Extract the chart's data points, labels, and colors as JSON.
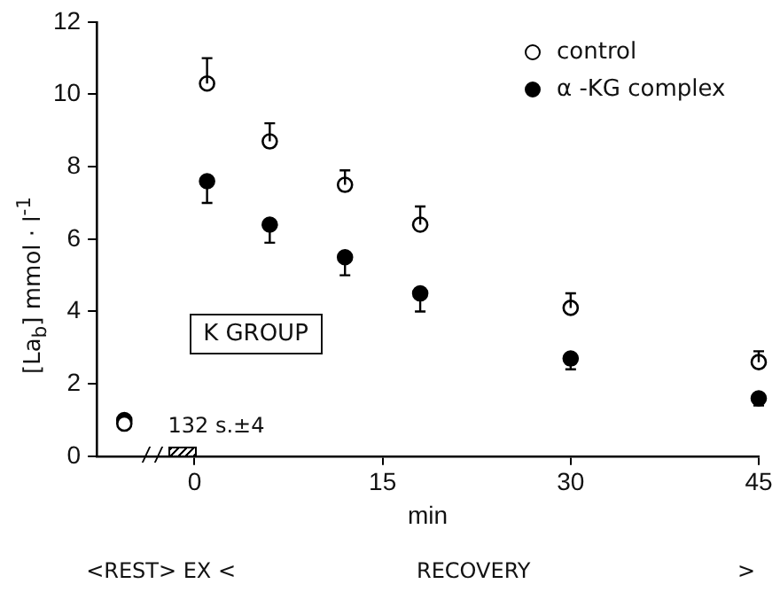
{
  "chart_data": {
    "type": "scatter",
    "xlabel": "min",
    "ylabel": "[La$_{b}$] mmol · l$^{-1}$",
    "xlim": [
      -7.8,
      45
    ],
    "xticks": [
      0,
      15,
      30,
      45
    ],
    "ylim": [
      0,
      12
    ],
    "yticks": [
      0,
      2,
      4,
      6,
      8,
      10,
      12
    ],
    "x": [
      -5.6,
      1,
      6,
      12,
      18,
      30,
      45
    ],
    "series": [
      {
        "name": "control",
        "color": "#ffffff",
        "values": [
          0.9,
          10.3,
          8.7,
          7.5,
          6.4,
          4.1,
          2.6
        ],
        "errors": [
          null,
          [
            10.3,
            11.0
          ],
          [
            8.7,
            9.2
          ],
          [
            7.5,
            7.9
          ],
          [
            6.4,
            6.9
          ],
          [
            4.1,
            4.5
          ],
          [
            2.6,
            2.9
          ]
        ]
      },
      {
        "name": "α -KG complex",
        "color": "#000000",
        "values": [
          1.0,
          7.6,
          6.4,
          5.5,
          4.5,
          2.7,
          1.6
        ],
        "errors": [
          null,
          [
            7.0,
            7.6
          ],
          [
            5.9,
            6.4
          ],
          [
            5.0,
            5.5
          ],
          [
            4.0,
            4.5
          ],
          [
            2.4,
            2.7
          ],
          [
            1.4,
            1.6
          ]
        ]
      }
    ],
    "annotations": [
      "K GROUP",
      "<REST> EX <",
      "RECOVERY",
      ">",
      "132 s.±4"
    ],
    "marker": "circle",
    "legend": "top right",
    "grid": false
  }
}
